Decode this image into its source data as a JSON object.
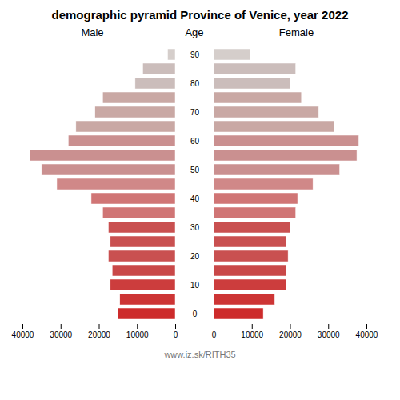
{
  "chart_data": {
    "type": "bar",
    "orientation": "horizontal",
    "title": "demographic pyramid Province of Venice, year 2022",
    "ylabel": "Age",
    "categories": [
      "0",
      null,
      "10",
      null,
      "20",
      null,
      "30",
      null,
      "40",
      null,
      "50",
      null,
      "60",
      null,
      "70",
      null,
      "80",
      null,
      "90"
    ],
    "series": [
      {
        "name": "Male",
        "values": [
          15000,
          14500,
          17000,
          16500,
          17500,
          17000,
          17500,
          19000,
          22000,
          31000,
          35000,
          38000,
          28000,
          26000,
          21000,
          19000,
          10500,
          8500,
          2000
        ],
        "colors": [
          "#cd2b2b",
          "#cd3535",
          "#cc3d3d",
          "#c94848",
          "#c95050",
          "#c95050",
          "#c95050",
          "#d07575",
          "#d07575",
          "#d08888",
          "#ca9090",
          "#ca9090",
          "#ca9090",
          "#c9a8a4",
          "#c9a8a4",
          "#c9a8a4",
          "#cbbdbb",
          "#cbbdbb",
          "#d5cecb"
        ]
      },
      {
        "name": "Female",
        "values": [
          13000,
          16000,
          19000,
          19000,
          19500,
          19000,
          20000,
          21500,
          22000,
          26000,
          33000,
          37500,
          38000,
          31500,
          27500,
          23000,
          20000,
          21500,
          9500
        ],
        "colors": [
          "#cd2b2b",
          "#cd3535",
          "#cc3d3d",
          "#c94848",
          "#c95050",
          "#c95050",
          "#c95050",
          "#d07575",
          "#d07575",
          "#d08888",
          "#ca9090",
          "#ca9090",
          "#ca9090",
          "#c9a8a4",
          "#c9a8a4",
          "#c9a8a4",
          "#cbbdbb",
          "#cbbdbb",
          "#d5cecb"
        ]
      }
    ],
    "xlim": [
      0,
      40000
    ],
    "xticks": [
      0,
      10000,
      20000,
      30000,
      40000
    ],
    "grid": false,
    "annotations": [
      "www.iz.sk/RITH35"
    ]
  }
}
